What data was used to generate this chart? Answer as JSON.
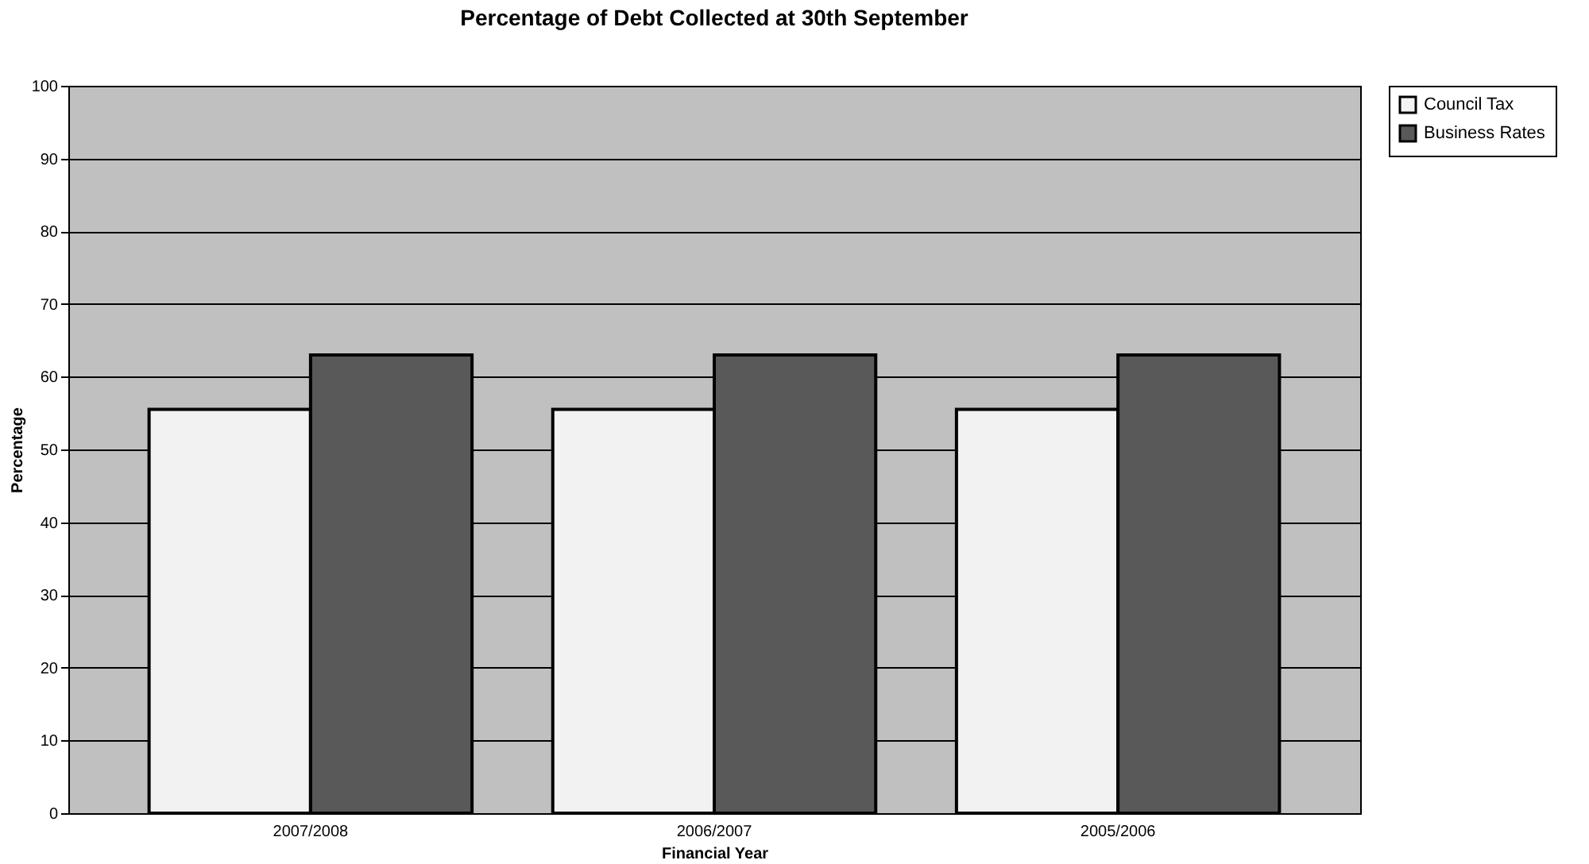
{
  "chart_data": {
    "type": "bar",
    "title": "Percentage of Debt Collected at 30th September",
    "xlabel": "Financial Year",
    "ylabel": "Percentage",
    "categories": [
      "2007/2008",
      "2006/2007",
      "2005/2006"
    ],
    "series": [
      {
        "name": "Council Tax",
        "color": "#f2f2f2",
        "values": [
          55.5,
          55.5,
          55.5
        ]
      },
      {
        "name": "Business Rates",
        "color": "#595959",
        "values": [
          63,
          63,
          63
        ]
      }
    ],
    "ylim": [
      0,
      100
    ],
    "yticks": [
      0,
      10,
      20,
      30,
      40,
      50,
      60,
      70,
      80,
      90,
      100
    ],
    "grid": "y",
    "legend": "right"
  }
}
